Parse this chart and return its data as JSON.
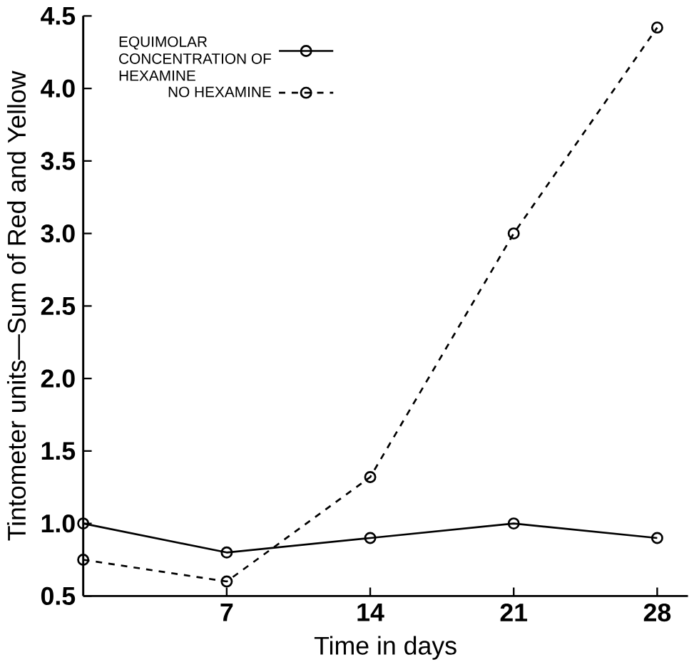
{
  "chart_data": {
    "type": "line",
    "xlabel": "Time in days",
    "ylabel": "Tintometer units—Sum of Red and Yellow",
    "x": [
      0,
      7,
      14,
      21,
      28
    ],
    "series": [
      {
        "name": "EQUIMOLAR CONCENTRATION OF HEXAMINE",
        "color": "#000000",
        "line_style": "solid",
        "values": [
          1.0,
          0.8,
          0.9,
          1.0,
          0.9
        ]
      },
      {
        "name": "NO HEXAMINE",
        "color": "#000000",
        "line_style": "dashed",
        "values": [
          0.75,
          0.6,
          1.32,
          3.0,
          4.42
        ]
      }
    ],
    "xlim": [
      0,
      29.5
    ],
    "xticks": [
      7,
      14,
      21,
      28
    ],
    "ylim": [
      0.5,
      4.5
    ],
    "yticks": [
      0.5,
      {
        "value": 1.0,
        "label": "1.0"
      },
      1.5,
      {
        "value": 2.0,
        "label": "2.0"
      },
      2.5,
      {
        "value": 3.0,
        "label": "3.0"
      },
      3.5,
      {
        "value": 4.0,
        "label": "4.0"
      },
      4.5
    ],
    "marker": "circle",
    "legend": "top left",
    "grid": false
  }
}
